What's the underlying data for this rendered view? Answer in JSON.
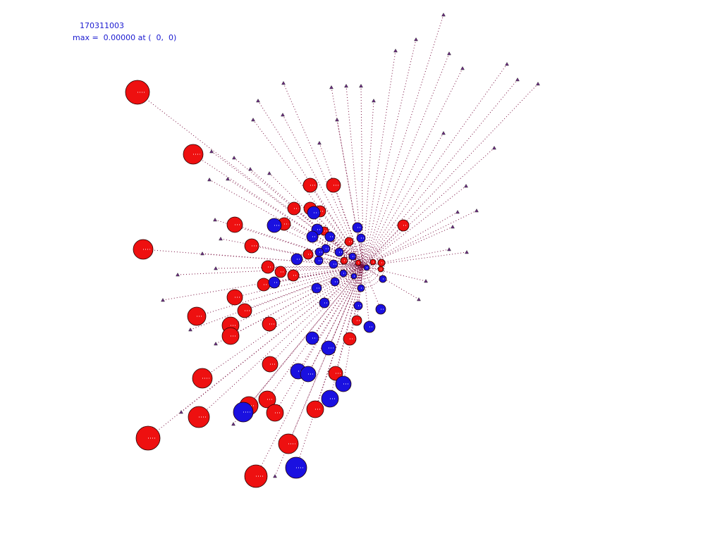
{
  "header": {
    "id": "170311003",
    "max_line": "max =  0.00000 at (  0,  0)"
  }
}
